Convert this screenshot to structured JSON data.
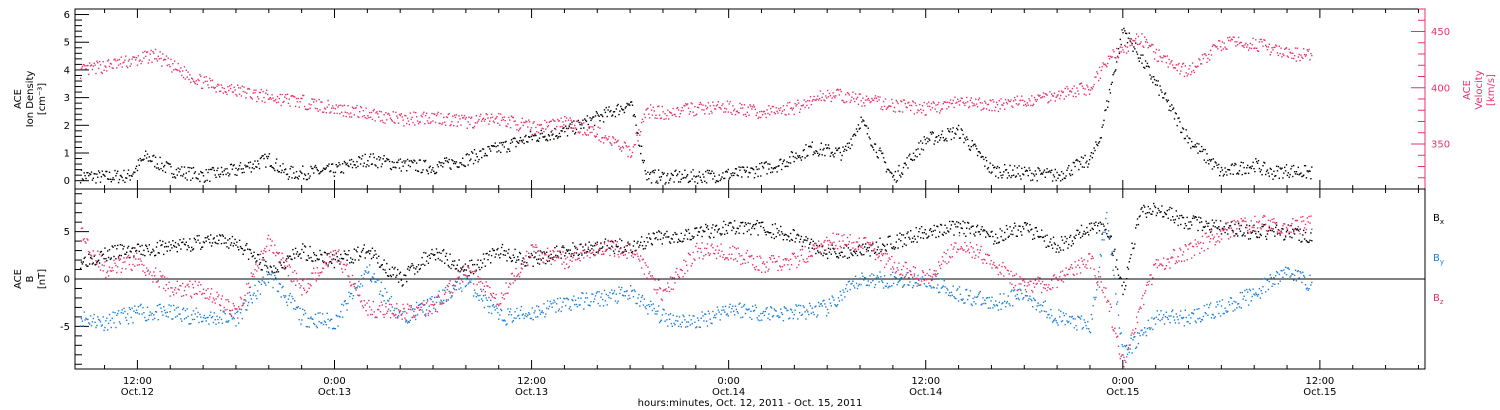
{
  "colors": {
    "black": "#000000",
    "magenta": "#e8336a",
    "blue": "#1a7fd9"
  },
  "xaxis": {
    "title": "hours:minutes, Oct. 12, 2011 - Oct. 15, 2011",
    "range_hours": [
      -3.8,
      78.4
    ],
    "ticks": [
      {
        "hour": 0,
        "time": "12:00",
        "date": "Oct.12"
      },
      {
        "hour": 12,
        "time": "0:00",
        "date": "Oct.13"
      },
      {
        "hour": 24,
        "time": "12:00",
        "date": "Oct.13"
      },
      {
        "hour": 36,
        "time": "0:00",
        "date": "Oct.14"
      },
      {
        "hour": 48,
        "time": "12:00",
        "date": "Oct.14"
      },
      {
        "hour": 60,
        "time": "0:00",
        "date": "Oct.15"
      },
      {
        "hour": 72,
        "time": "12:00",
        "date": "Oct.15"
      }
    ]
  },
  "chart_data": [
    {
      "type": "scatter",
      "panel": "top",
      "ylabel_left": [
        "ACE",
        "Ion Density",
        "[cm⁻³]"
      ],
      "ylabel_right": [
        "ACE",
        "Velocity",
        "[km/s]"
      ],
      "ylim_left": [
        -0.3,
        6.2
      ],
      "ylim_right": [
        310,
        470
      ],
      "yticks_left": [
        "0",
        "1",
        "2",
        "3",
        "4",
        "5",
        "6"
      ],
      "yticks_right": [
        "350",
        "400",
        "450"
      ],
      "series": [
        {
          "color": "#000000",
          "axis": "left",
          "x": [
            -3.5,
            -2,
            -0.5,
            0.5,
            2,
            3,
            4,
            6,
            8,
            9,
            10,
            12,
            14,
            16,
            18,
            20,
            22,
            24,
            26,
            28,
            30,
            31,
            32,
            33,
            35,
            37,
            39,
            41,
            43,
            44,
            46,
            48,
            50,
            52,
            54,
            56,
            58,
            58.5,
            60,
            61,
            62,
            64,
            66,
            68,
            69,
            70,
            71.5
          ],
          "y": [
            0.2,
            0.15,
            0.2,
            0.9,
            0.4,
            0.3,
            0.2,
            0.4,
            0.8,
            0.3,
            0.3,
            0.4,
            0.8,
            0.6,
            0.5,
            0.8,
            1.2,
            1.6,
            1.8,
            2.3,
            2.8,
            0.2,
            0.15,
            0.15,
            0.2,
            0.3,
            0.6,
            1.2,
            1.0,
            2.2,
            0.1,
            1.5,
            1.8,
            0.4,
            0.3,
            0.2,
            0.8,
            1.4,
            5.5,
            4.5,
            3.5,
            1.5,
            0.3,
            0.6,
            0.3,
            0.4,
            0.3
          ]
        },
        {
          "color": "#e8336a",
          "axis": "right",
          "x": [
            -3.5,
            -2,
            0,
            1,
            2,
            4,
            6,
            8,
            10,
            12,
            14,
            16,
            18,
            20,
            22,
            24,
            26,
            28,
            30,
            31,
            32,
            34,
            36,
            38,
            40,
            42,
            44,
            46,
            48,
            50,
            52,
            54,
            56,
            57,
            58,
            59,
            60,
            61,
            62,
            63,
            64,
            66,
            68,
            70,
            71.5
          ],
          "y": [
            415,
            420,
            425,
            430,
            420,
            405,
            398,
            392,
            388,
            382,
            378,
            372,
            375,
            370,
            373,
            365,
            370,
            360,
            343,
            380,
            378,
            382,
            383,
            378,
            383,
            395,
            390,
            385,
            382,
            387,
            385,
            388,
            395,
            398,
            400,
            425,
            435,
            445,
            430,
            420,
            415,
            440,
            440,
            430,
            430
          ]
        }
      ]
    },
    {
      "type": "scatter",
      "panel": "bottom",
      "ylabel_left": [
        "ACE",
        "B",
        "[nT]"
      ],
      "ylim": [
        -9.5,
        9.5
      ],
      "yticks": [
        "-5",
        "0",
        "5"
      ],
      "zero_line": true,
      "legend_placement": "right",
      "series": [
        {
          "name": "Bx",
          "color": "#000000",
          "x": [
            -3.5,
            -1,
            0,
            2,
            4,
            6,
            8,
            10,
            12,
            14,
            16,
            18,
            20,
            22,
            24,
            26,
            28,
            30,
            32,
            34,
            36,
            38,
            40,
            42,
            44,
            46,
            48,
            50,
            52,
            54,
            56,
            58,
            59,
            60,
            61,
            62,
            64,
            66,
            68,
            70,
            71.5
          ],
          "y": [
            2,
            3,
            3,
            3.5,
            4,
            4,
            1,
            3,
            2,
            3,
            0,
            3,
            1,
            3,
            2,
            3,
            3.5,
            3.5,
            4.5,
            5,
            5.5,
            5.5,
            4.5,
            3,
            3,
            4,
            5,
            5.5,
            4.5,
            5.5,
            3.5,
            5.5,
            5.5,
            -1,
            7,
            7.5,
            6,
            5.5,
            5,
            5,
            4.5
          ]
        },
        {
          "name": "By",
          "color": "#1a7fd9",
          "x": [
            -3.5,
            -2,
            0,
            2,
            4,
            6,
            8,
            10,
            12,
            14,
            16,
            18,
            20,
            22,
            24,
            26,
            28,
            30,
            32,
            34,
            36,
            38,
            40,
            42,
            44,
            46,
            48,
            50,
            52,
            54,
            56,
            58,
            59,
            60,
            61,
            62,
            64,
            66,
            68,
            70,
            71.5
          ],
          "y": [
            -4,
            -4.5,
            -3.5,
            -3.5,
            -4,
            -4,
            0.5,
            -4,
            -4.5,
            1,
            -4,
            -2.5,
            0,
            -4,
            -3.5,
            -2.5,
            -2,
            -1.5,
            -4,
            -4.5,
            -3,
            -3.5,
            -3.5,
            -3,
            0,
            0,
            0,
            -1.5,
            -2.5,
            -1.5,
            -4,
            -5,
            7,
            -8,
            -6,
            -4,
            -4,
            -3,
            -1.5,
            1,
            -0.5
          ]
        },
        {
          "name": "Bz",
          "color": "#e8336a",
          "x": [
            -3.5,
            -2,
            0,
            2,
            4,
            6,
            8,
            10,
            12,
            14,
            16,
            18,
            20,
            22,
            24,
            26,
            28,
            30,
            32,
            34,
            36,
            38,
            40,
            42,
            44,
            46,
            48,
            50,
            52,
            54,
            56,
            58,
            59,
            60,
            61,
            62,
            64,
            66,
            68,
            70,
            71.5
          ],
          "y": [
            5,
            1,
            2,
            -1,
            -1,
            -3.5,
            4,
            -1,
            3,
            -3,
            -3.5,
            -3,
            1,
            -2,
            3,
            2,
            3.5,
            3,
            -1.5,
            3,
            3,
            1.5,
            2,
            4,
            4,
            1.5,
            0,
            4,
            2,
            -1,
            0,
            2,
            -2,
            -9,
            -3,
            1.5,
            3,
            5,
            6,
            5.5,
            6
          ]
        }
      ]
    }
  ]
}
